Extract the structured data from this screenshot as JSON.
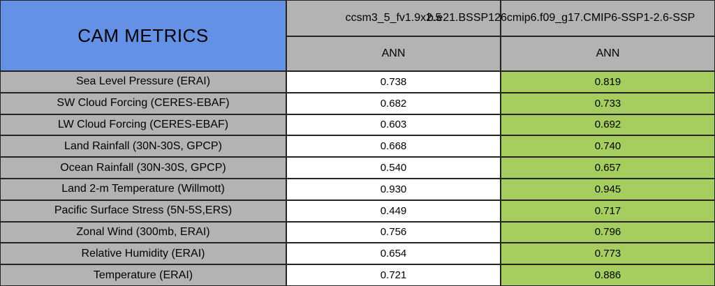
{
  "table": {
    "title": "CAM METRICS",
    "columns": [
      {
        "model": "ccsm3_5_fv1.9x2.5",
        "season": "ANN"
      },
      {
        "model": "b.e21.BSSP126cmip6.f09_g17.CMIP6-SSP1-2.6-SSP",
        "season": "ANN"
      }
    ],
    "rows": [
      {
        "label": "Sea Level Pressure (ERAI)",
        "values": [
          "0.738",
          "0.819"
        ]
      },
      {
        "label": "SW Cloud Forcing (CERES-EBAF)",
        "values": [
          "0.682",
          "0.733"
        ]
      },
      {
        "label": "LW Cloud Forcing (CERES-EBAF)",
        "values": [
          "0.603",
          "0.692"
        ]
      },
      {
        "label": "Land Rainfall (30N-30S, GPCP)",
        "values": [
          "0.668",
          "0.740"
        ]
      },
      {
        "label": "Ocean Rainfall (30N-30S, GPCP)",
        "values": [
          "0.540",
          "0.657"
        ]
      },
      {
        "label": "Land 2-m Temperature (Willmott)",
        "values": [
          "0.930",
          "0.945"
        ]
      },
      {
        "label": "Pacific Surface Stress (5N-5S,ERS)",
        "values": [
          "0.449",
          "0.717"
        ]
      },
      {
        "label": "Zonal Wind (300mb, ERAI)",
        "values": [
          "0.756",
          "0.796"
        ]
      },
      {
        "label": "Relative Humidity (ERAI)",
        "values": [
          "0.654",
          "0.773"
        ]
      },
      {
        "label": "Temperature (ERAI)",
        "values": [
          "0.721",
          "0.886"
        ]
      }
    ],
    "colors": {
      "title_blue": "#6491e6",
      "header_gray": "#b3b3b3",
      "highlight_green": "#a5cd60",
      "cell_white": "#ffffff",
      "border": "#242424"
    }
  },
  "chart_data": {
    "type": "table",
    "title": "CAM METRICS",
    "categories": [
      "Sea Level Pressure (ERAI)",
      "SW Cloud Forcing (CERES-EBAF)",
      "LW Cloud Forcing (CERES-EBAF)",
      "Land Rainfall (30N-30S, GPCP)",
      "Ocean Rainfall (30N-30S, GPCP)",
      "Land 2-m Temperature (Willmott)",
      "Pacific Surface Stress (5N-5S,ERS)",
      "Zonal Wind (300mb, ERAI)",
      "Relative Humidity (ERAI)",
      "Temperature (ERAI)"
    ],
    "series": [
      {
        "name": "ccsm3_5_fv1.9x2.5",
        "season": "ANN",
        "values": [
          0.738,
          0.682,
          0.603,
          0.668,
          0.54,
          0.93,
          0.449,
          0.756,
          0.654,
          0.721
        ],
        "cell_color": "#ffffff"
      },
      {
        "name": "b.e21.BSSP126cmip6.f09_g17.CMIP6-SSP1-2.6-SSP",
        "season": "ANN",
        "values": [
          0.819,
          0.733,
          0.692,
          0.74,
          0.657,
          0.945,
          0.717,
          0.796,
          0.773,
          0.886
        ],
        "cell_color": "#a5cd60",
        "name_clipped_at_right_edge": true
      }
    ],
    "layout": "metrics as rows, two model runs as columns, second run highlighted green"
  }
}
